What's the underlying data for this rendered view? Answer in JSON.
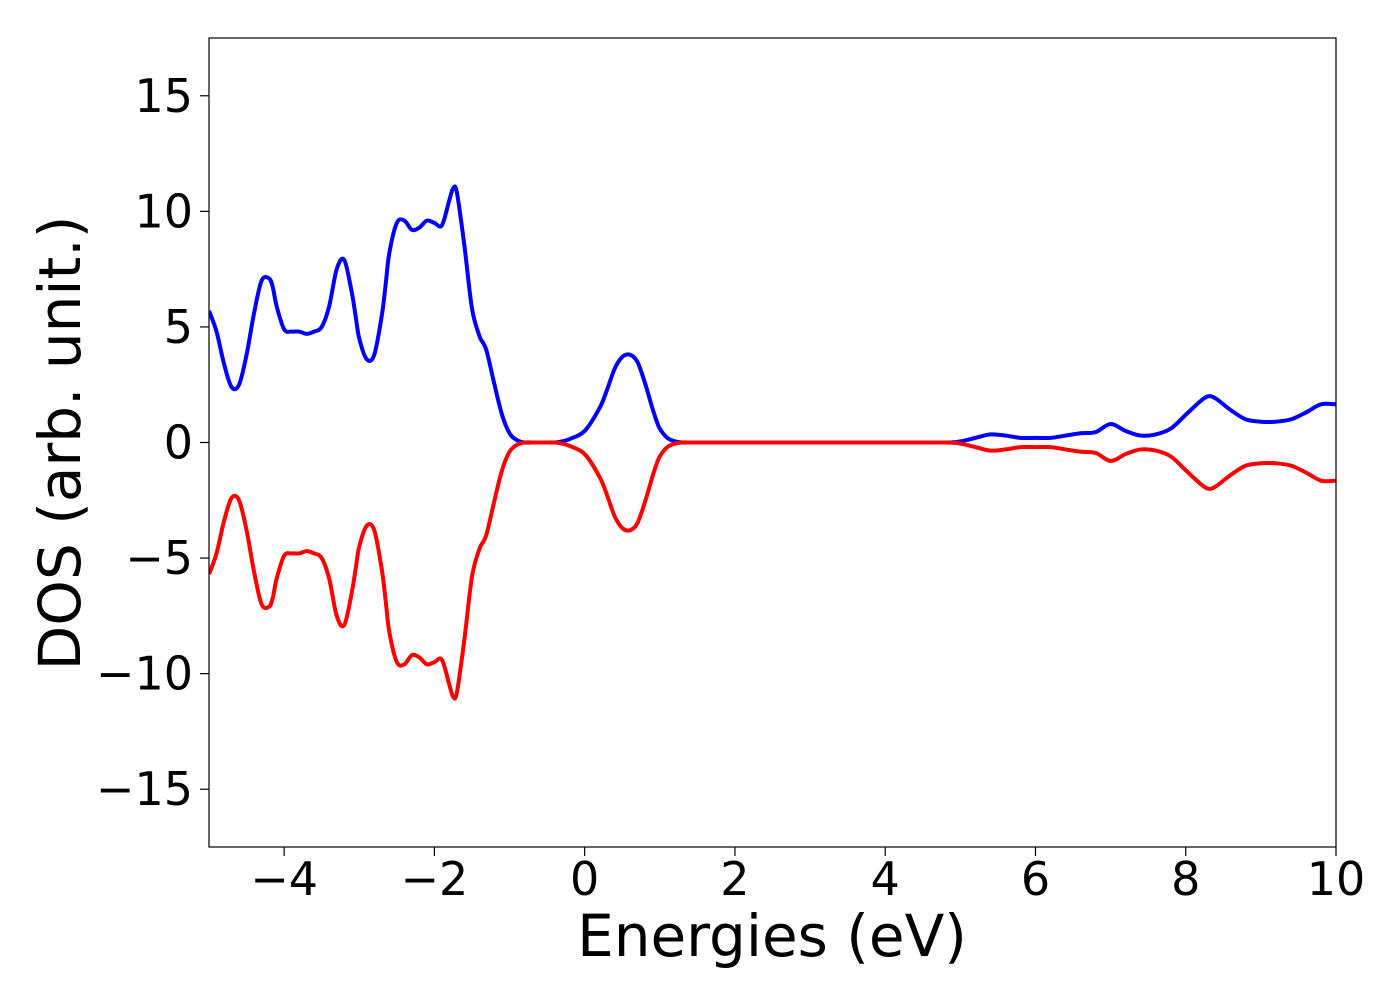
{
  "chart_data": {
    "type": "line",
    "title": "",
    "xlabel": "Energies (eV)",
    "ylabel": "DOS (arb. unit.)",
    "xlim": [
      -5,
      10
    ],
    "ylim": [
      -17.5,
      17.5
    ],
    "xticks": [
      -4,
      -2,
      0,
      2,
      4,
      6,
      8,
      10
    ],
    "xtick_labels": [
      "−4",
      "−2",
      "0",
      "2",
      "4",
      "6",
      "8",
      "10"
    ],
    "yticks": [
      15,
      10,
      5,
      0,
      -5,
      -10,
      -15
    ],
    "ytick_labels": [
      "15",
      "10",
      "5",
      "0",
      "−5",
      "−10",
      "−15"
    ],
    "grid": false,
    "legend": "none",
    "series": [
      {
        "color": "#0000ff",
        "x": [
          -5.0,
          -4.9,
          -4.8,
          -4.7,
          -4.6,
          -4.5,
          -4.4,
          -4.3,
          -4.2,
          -4.15,
          -4.1,
          -4.0,
          -3.9,
          -3.8,
          -3.7,
          -3.6,
          -3.5,
          -3.4,
          -3.3,
          -3.2,
          -3.1,
          -3.05,
          -3.0,
          -2.9,
          -2.8,
          -2.7,
          -2.65,
          -2.6,
          -2.5,
          -2.4,
          -2.3,
          -2.2,
          -2.1,
          -2.0,
          -1.9,
          -1.8,
          -1.75,
          -1.7,
          -1.6,
          -1.5,
          -1.4,
          -1.35,
          -1.3,
          -1.2,
          -1.1,
          -1.0,
          -0.9,
          -0.8,
          -0.7,
          -0.6,
          -0.5,
          -0.4,
          -0.3,
          -0.2,
          0.0,
          0.2,
          0.3,
          0.4,
          0.5,
          0.6,
          0.7,
          0.8,
          0.9,
          0.95,
          1.0,
          1.1,
          1.2,
          1.3,
          1.4,
          1.5,
          1.6,
          2.0,
          3.0,
          4.0,
          4.8,
          5.0,
          5.2,
          5.4,
          5.6,
          5.8,
          6.0,
          6.2,
          6.4,
          6.6,
          6.8,
          7.0,
          7.2,
          7.4,
          7.6,
          7.8,
          8.0,
          8.2,
          8.3,
          8.4,
          8.6,
          8.8,
          9.0,
          9.2,
          9.4,
          9.6,
          9.8,
          10.0
        ],
        "y": [
          5.7,
          4.8,
          3.4,
          2.4,
          2.5,
          3.8,
          5.6,
          7.0,
          7.1,
          6.7,
          5.9,
          4.9,
          4.8,
          4.8,
          4.7,
          4.8,
          5.0,
          5.9,
          7.5,
          7.9,
          6.5,
          5.5,
          4.5,
          3.6,
          3.8,
          5.5,
          6.8,
          8.2,
          9.5,
          9.6,
          9.2,
          9.3,
          9.6,
          9.5,
          9.4,
          10.5,
          11.0,
          10.8,
          8.5,
          5.8,
          4.6,
          4.3,
          3.9,
          2.5,
          1.2,
          0.4,
          0.1,
          0.0,
          0.0,
          0.0,
          0.0,
          0.0,
          0.05,
          0.15,
          0.5,
          1.5,
          2.3,
          3.2,
          3.7,
          3.8,
          3.5,
          2.6,
          1.5,
          1.0,
          0.6,
          0.2,
          0.05,
          0.0,
          0.0,
          0.0,
          0.0,
          0.0,
          0.0,
          0.0,
          0.0,
          0.05,
          0.2,
          0.35,
          0.3,
          0.2,
          0.2,
          0.2,
          0.3,
          0.4,
          0.45,
          0.8,
          0.5,
          0.3,
          0.35,
          0.6,
          1.2,
          1.8,
          2.0,
          1.9,
          1.4,
          1.0,
          0.9,
          0.9,
          1.0,
          1.3,
          1.65,
          1.65
        ]
      },
      {
        "color": "#ff0000",
        "x": [
          -5.0,
          -4.9,
          -4.8,
          -4.7,
          -4.6,
          -4.5,
          -4.4,
          -4.3,
          -4.2,
          -4.15,
          -4.1,
          -4.0,
          -3.9,
          -3.8,
          -3.7,
          -3.6,
          -3.5,
          -3.4,
          -3.3,
          -3.2,
          -3.1,
          -3.05,
          -3.0,
          -2.9,
          -2.8,
          -2.7,
          -2.65,
          -2.6,
          -2.5,
          -2.4,
          -2.3,
          -2.2,
          -2.1,
          -2.0,
          -1.9,
          -1.8,
          -1.75,
          -1.7,
          -1.6,
          -1.5,
          -1.4,
          -1.35,
          -1.3,
          -1.2,
          -1.1,
          -1.0,
          -0.9,
          -0.8,
          -0.7,
          -0.6,
          -0.5,
          -0.4,
          -0.3,
          -0.2,
          0.0,
          0.2,
          0.3,
          0.4,
          0.5,
          0.6,
          0.7,
          0.8,
          0.9,
          0.95,
          1.0,
          1.1,
          1.2,
          1.3,
          1.4,
          1.5,
          1.6,
          2.0,
          3.0,
          4.0,
          4.8,
          5.0,
          5.2,
          5.4,
          5.6,
          5.8,
          6.0,
          6.2,
          6.4,
          6.6,
          6.8,
          7.0,
          7.2,
          7.4,
          7.6,
          7.8,
          8.0,
          8.2,
          8.3,
          8.4,
          8.6,
          8.8,
          9.0,
          9.2,
          9.4,
          9.6,
          9.8,
          10.0
        ],
        "y": [
          -5.7,
          -4.8,
          -3.4,
          -2.4,
          -2.5,
          -3.8,
          -5.6,
          -7.0,
          -7.1,
          -6.7,
          -5.9,
          -4.9,
          -4.8,
          -4.8,
          -4.7,
          -4.8,
          -5.0,
          -5.9,
          -7.5,
          -7.9,
          -6.5,
          -5.5,
          -4.5,
          -3.6,
          -3.8,
          -5.5,
          -6.8,
          -8.2,
          -9.5,
          -9.6,
          -9.2,
          -9.3,
          -9.6,
          -9.5,
          -9.4,
          -10.5,
          -11.0,
          -10.8,
          -8.5,
          -5.8,
          -4.6,
          -4.3,
          -3.9,
          -2.5,
          -1.2,
          -0.4,
          -0.1,
          0.0,
          0.0,
          0.0,
          0.0,
          0.0,
          -0.05,
          -0.15,
          -0.5,
          -1.5,
          -2.3,
          -3.2,
          -3.7,
          -3.8,
          -3.5,
          -2.6,
          -1.5,
          -1.0,
          -0.6,
          -0.2,
          -0.05,
          0.0,
          0.0,
          0.0,
          0.0,
          0.0,
          0.0,
          0.0,
          0.0,
          -0.05,
          -0.2,
          -0.35,
          -0.3,
          -0.2,
          -0.2,
          -0.2,
          -0.3,
          -0.4,
          -0.45,
          -0.8,
          -0.5,
          -0.3,
          -0.35,
          -0.6,
          -1.2,
          -1.8,
          -2.0,
          -1.9,
          -1.4,
          -1.0,
          -0.9,
          -0.9,
          -1.0,
          -1.3,
          -1.65,
          -1.65
        ]
      }
    ]
  }
}
